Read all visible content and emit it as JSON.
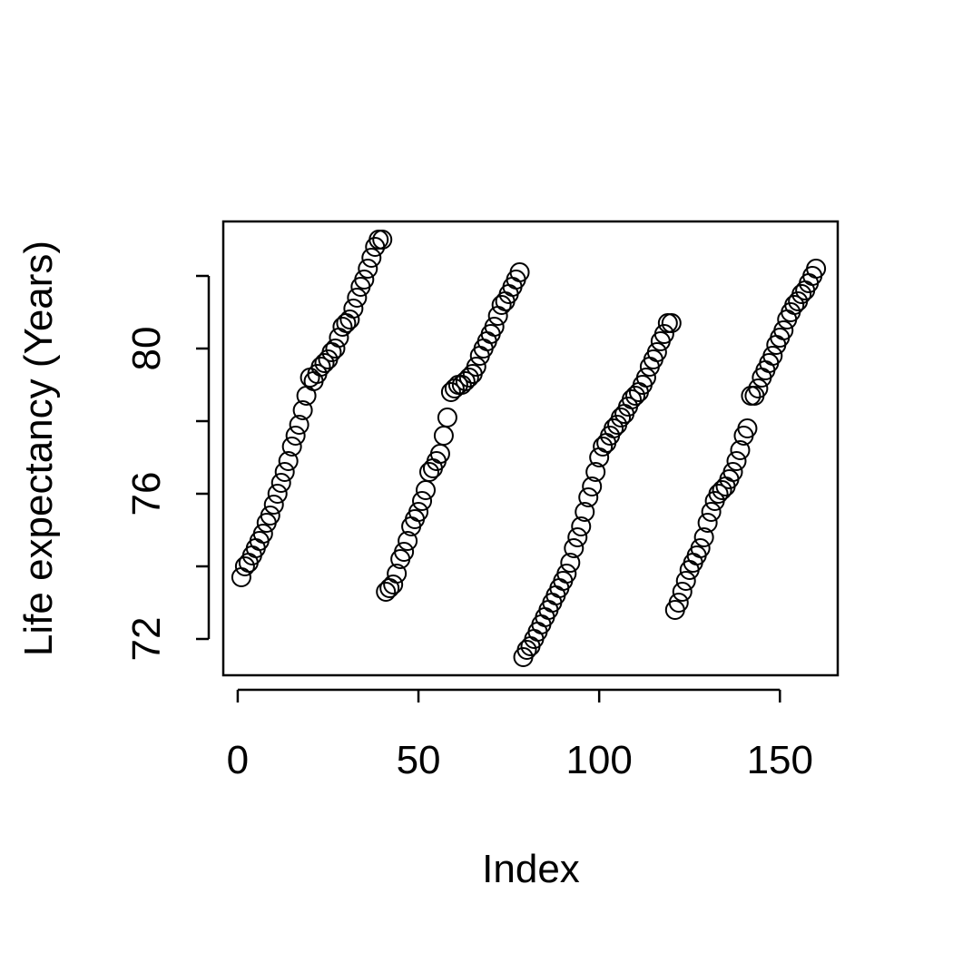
{
  "chart_data": {
    "type": "scatter",
    "title": "",
    "xlabel": "Index",
    "ylabel": "Life expectancy (Years)",
    "xlim": [
      -4,
      166
    ],
    "ylim": [
      71.0,
      83.5
    ],
    "x_ticks": [
      0,
      50,
      100,
      150
    ],
    "x_tick_labels": [
      "0",
      "50",
      "100",
      "150"
    ],
    "y_ticks": [
      72,
      74,
      76,
      78,
      80,
      82
    ],
    "y_tick_labels": [
      "72",
      "",
      "76",
      "",
      "80",
      ""
    ],
    "grid": false,
    "marker": "open-circle",
    "series": [
      {
        "x": [
          1,
          2,
          3,
          4,
          5,
          6,
          7,
          8,
          9,
          10,
          11,
          12,
          13,
          14,
          15,
          16,
          17,
          18,
          19,
          20,
          21,
          22,
          23,
          24,
          25,
          26,
          27,
          28,
          29,
          30,
          31,
          32,
          33,
          34,
          35,
          36,
          37,
          38,
          39,
          40,
          41,
          42,
          43,
          44,
          45,
          46,
          47,
          48,
          49,
          50,
          51,
          52,
          53,
          54,
          55,
          56,
          57,
          58,
          59,
          60,
          61,
          62,
          63,
          64,
          65,
          66,
          67,
          68,
          69,
          70,
          71,
          72,
          73,
          74,
          75,
          76,
          77,
          78,
          79,
          80,
          81,
          82,
          83,
          84,
          85,
          86,
          87,
          88,
          89,
          90,
          91,
          92,
          93,
          94,
          95,
          96,
          97,
          98,
          99,
          100,
          101,
          102,
          103,
          104,
          105,
          106,
          107,
          108,
          109,
          110,
          111,
          112,
          113,
          114,
          115,
          116,
          117,
          118,
          119,
          120,
          121,
          122,
          123,
          124,
          125,
          126,
          127,
          128,
          129,
          130,
          131,
          132,
          133,
          134,
          135,
          136,
          137,
          138,
          139,
          140,
          141,
          142,
          143,
          144,
          145,
          146,
          147,
          148,
          149,
          150,
          151,
          152,
          153,
          154,
          155,
          156,
          157,
          158,
          159,
          160
        ],
        "y": [
          73.7,
          74.0,
          74.1,
          74.3,
          74.5,
          74.7,
          74.9,
          75.2,
          75.4,
          75.7,
          76.0,
          76.3,
          76.6,
          76.9,
          77.3,
          77.6,
          77.9,
          78.3,
          78.7,
          79.2,
          79.1,
          79.3,
          79.5,
          79.6,
          79.7,
          79.9,
          80.0,
          80.3,
          80.6,
          80.7,
          80.8,
          81.1,
          81.4,
          81.7,
          81.9,
          82.2,
          82.5,
          82.8,
          83.0,
          83.0,
          73.3,
          73.4,
          73.5,
          73.8,
          74.2,
          74.4,
          74.7,
          75.1,
          75.3,
          75.5,
          75.8,
          76.1,
          76.6,
          76.7,
          76.9,
          77.1,
          77.6,
          78.1,
          78.8,
          78.9,
          79.0,
          79.0,
          79.1,
          79.2,
          79.3,
          79.5,
          79.8,
          80.0,
          80.2,
          80.4,
          80.6,
          80.9,
          81.2,
          81.3,
          81.5,
          81.7,
          81.9,
          82.1,
          71.5,
          71.7,
          71.8,
          72.0,
          72.2,
          72.4,
          72.6,
          72.8,
          73.0,
          73.2,
          73.4,
          73.6,
          73.8,
          74.1,
          74.5,
          74.8,
          75.1,
          75.5,
          75.9,
          76.2,
          76.6,
          77.0,
          77.3,
          77.4,
          77.6,
          77.8,
          77.9,
          78.1,
          78.2,
          78.4,
          78.6,
          78.7,
          78.8,
          79.0,
          79.2,
          79.5,
          79.7,
          79.9,
          80.2,
          80.4,
          80.7,
          80.7,
          72.8,
          73.0,
          73.3,
          73.6,
          73.9,
          74.1,
          74.3,
          74.5,
          74.8,
          75.2,
          75.5,
          75.8,
          76.0,
          76.1,
          76.2,
          76.4,
          76.6,
          76.9,
          77.2,
          77.6,
          77.8,
          78.7,
          78.7,
          78.9,
          79.2,
          79.4,
          79.6,
          79.8,
          80.1,
          80.3,
          80.5,
          80.8,
          81.0,
          81.2,
          81.3,
          81.5,
          81.6,
          81.8,
          82.0,
          82.2
        ]
      }
    ]
  }
}
